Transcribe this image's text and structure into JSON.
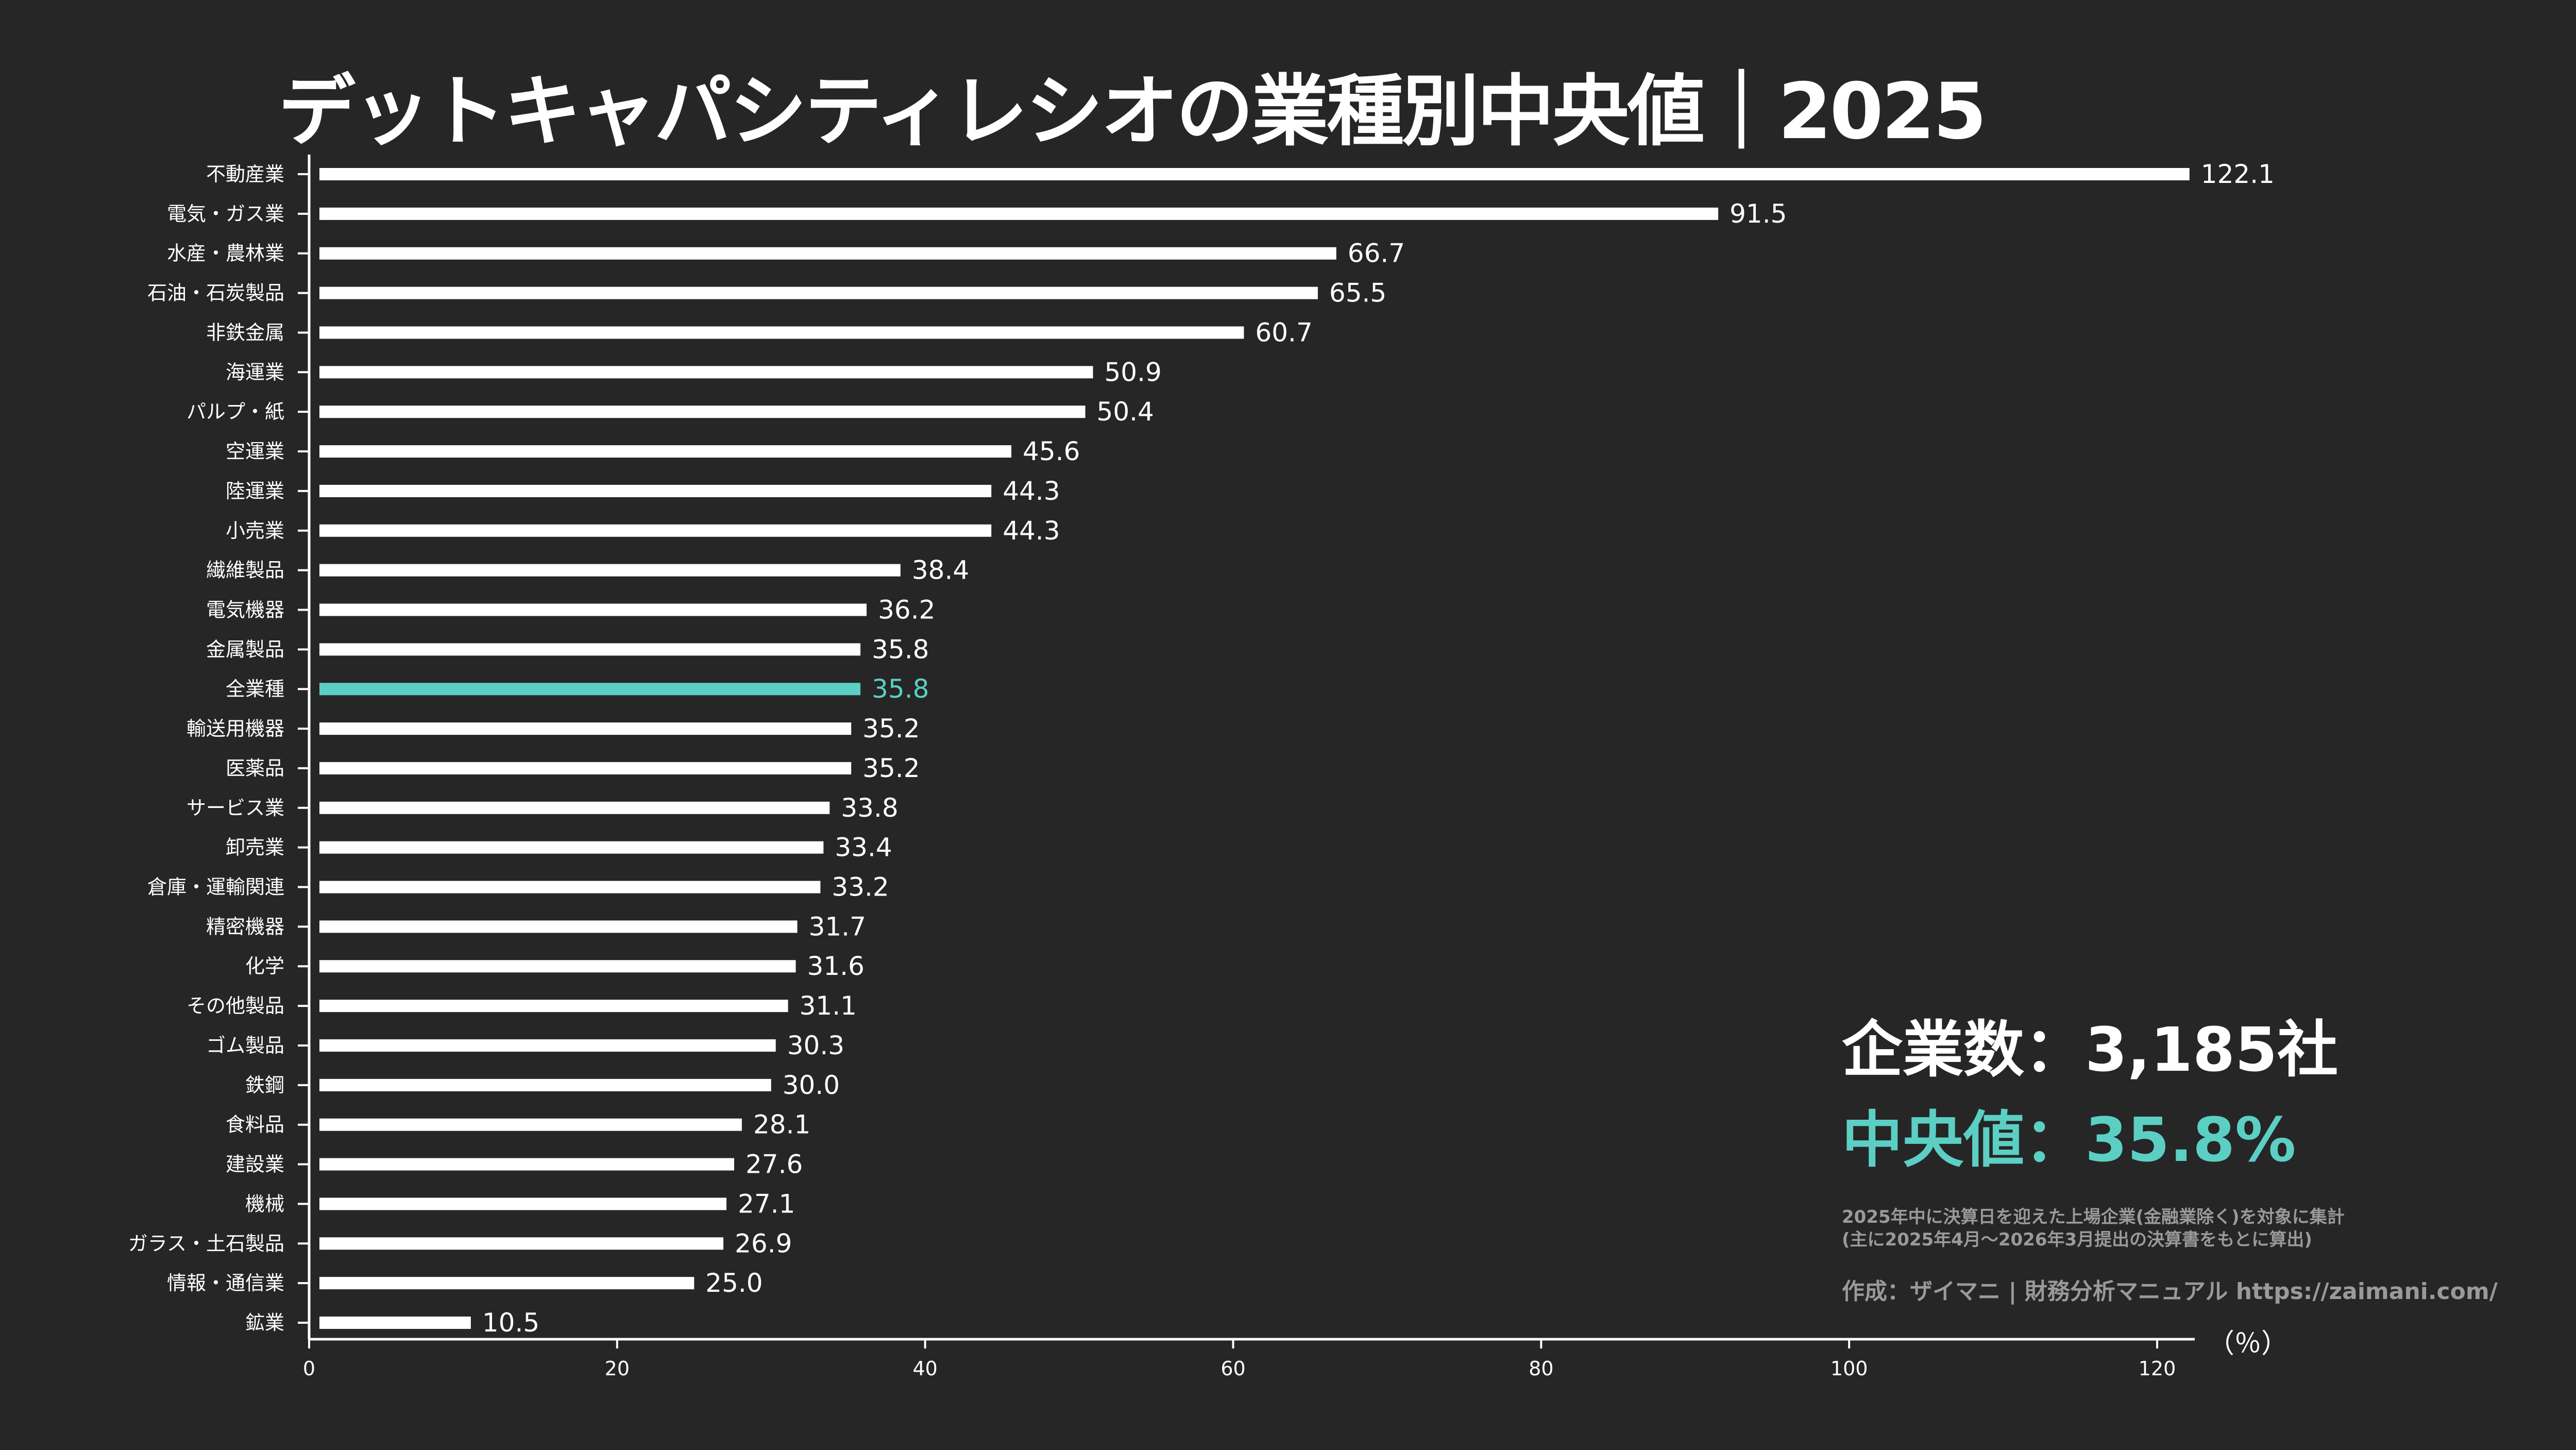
{
  "title": "デットキャパシティレシオの業種別中央値｜2025",
  "stats": {
    "companies": "企業数：3,185社",
    "median": "中央値：35.8%",
    "note_line1": "2025年中に決算日を迎えた上場企業(金融業除く)を対象に集計",
    "note_line2": "(主に2025年4月～2026年3月提出の決算書をもとに算出)",
    "credit": "作成：ザイマニ | 財務分析マニュアル https://zaimani.com/"
  },
  "colors": {
    "background": "#262626",
    "bar": "#ffffff",
    "highlight": "#5ccfc4",
    "note": "#9a9a9a"
  },
  "chart_data": {
    "type": "bar",
    "orientation": "horizontal",
    "title": "デットキャパシティレシオの業種別中央値｜2025",
    "xlabel": "（％）",
    "xlim": [
      0,
      122
    ],
    "xticks": [
      0,
      20,
      40,
      60,
      80,
      100,
      120
    ],
    "grid": false,
    "highlight_category": "全業種",
    "categories": [
      "不動産業",
      "電気・ガス業",
      "水産・農林業",
      "石油・石炭製品",
      "非鉄金属",
      "海運業",
      "パルプ・紙",
      "空運業",
      "陸運業",
      "小売業",
      "繊維製品",
      "電気機器",
      "金属製品",
      "全業種",
      "輸送用機器",
      "医薬品",
      "サービス業",
      "卸売業",
      "倉庫・運輸関連",
      "精密機器",
      "化学",
      "その他製品",
      "ゴム製品",
      "鉄鋼",
      "食料品",
      "建設業",
      "機械",
      "ガラス・土石製品",
      "情報・通信業",
      "鉱業"
    ],
    "values": [
      122.1,
      91.5,
      66.7,
      65.5,
      60.7,
      50.9,
      50.4,
      45.6,
      44.3,
      44.3,
      38.4,
      36.2,
      35.8,
      35.8,
      35.2,
      35.2,
      33.8,
      33.4,
      33.2,
      31.7,
      31.6,
      31.1,
      30.3,
      30.0,
      28.1,
      27.6,
      27.1,
      26.9,
      25.0,
      10.5
    ],
    "value_labels": [
      "122.1",
      "91.5",
      "66.7",
      "65.5",
      "60.7",
      "50.9",
      "50.4",
      "45.6",
      "44.3",
      "44.3",
      "38.4",
      "36.2",
      "35.8",
      "35.8",
      "35.2",
      "35.2",
      "33.8",
      "33.4",
      "33.2",
      "31.7",
      "31.6",
      "31.1",
      "30.3",
      "30.0",
      "28.1",
      "27.6",
      "27.1",
      "26.9",
      "25.0",
      "10.5"
    ]
  }
}
